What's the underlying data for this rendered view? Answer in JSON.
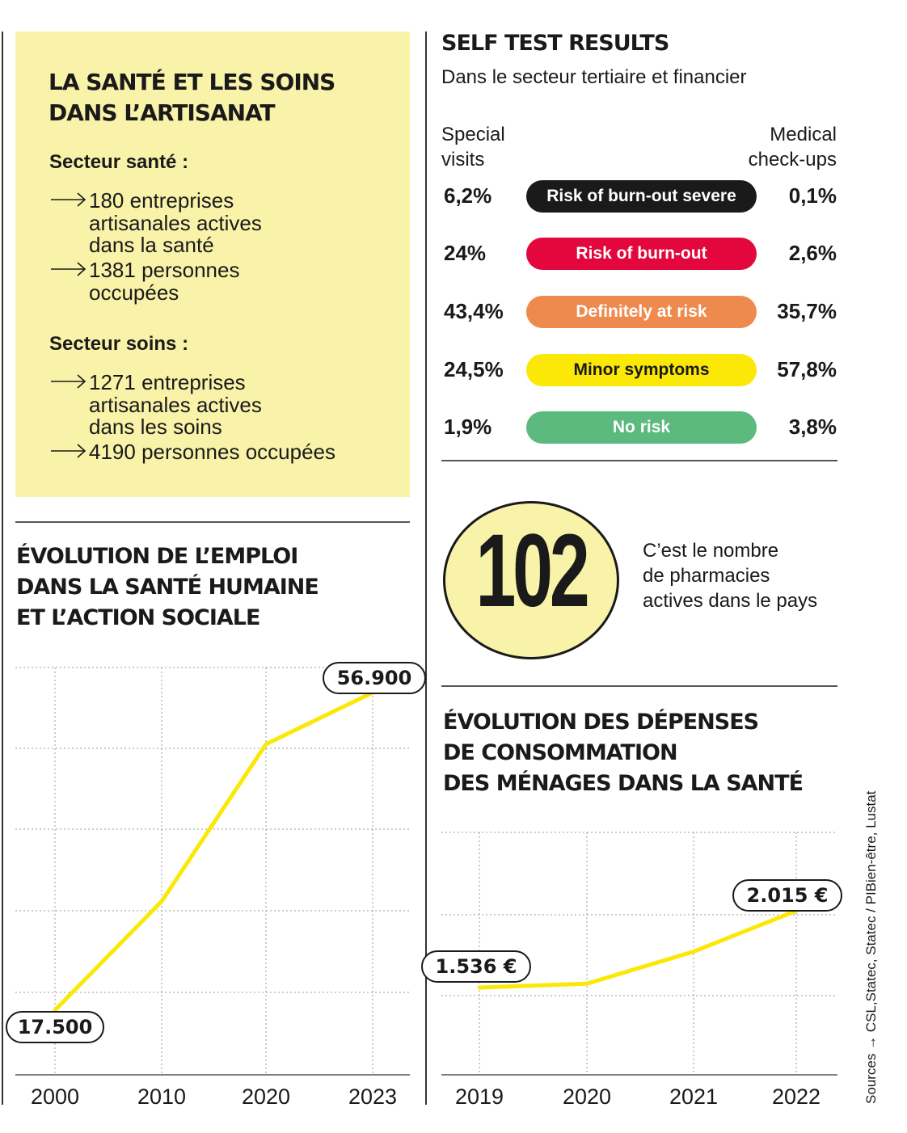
{
  "artisanat": {
    "title_line1": "LA SANTÉ ET LES SOINS",
    "title_line2": "DANS L’ARTISANAT",
    "sante": {
      "heading": "Secteur santé :",
      "items": [
        {
          "lines": [
            "180 entreprises",
            "artisanales actives",
            "dans la santé"
          ]
        },
        {
          "lines": [
            "1381 personnes",
            "occupées"
          ]
        }
      ]
    },
    "soins": {
      "heading": "Secteur soins :",
      "items": [
        {
          "lines": [
            "1271 entreprises",
            "artisanales actives",
            "dans les soins"
          ]
        },
        {
          "lines": [
            "4190 personnes occupées"
          ]
        }
      ]
    }
  },
  "self_test": {
    "title": "SELF TEST RESULTS",
    "subtitle": "Dans le secteur tertiaire et financier",
    "col_left": [
      "Special",
      "visits"
    ],
    "col_right": [
      "Medical",
      "check-ups"
    ],
    "rows": [
      {
        "label": "Risk of burn-out severe",
        "left": "6,2%",
        "right": "0,1%",
        "bg": "#1a1a1a",
        "fg": "#ffffff"
      },
      {
        "label": "Risk of burn-out",
        "left": "24%",
        "right": "2,6%",
        "bg": "#e3073d",
        "fg": "#ffffff"
      },
      {
        "label": "Definitely at risk",
        "left": "43,4%",
        "right": "35,7%",
        "bg": "#ef8a4e",
        "fg": "#ffffff"
      },
      {
        "label": "Minor symptoms",
        "left": "24,5%",
        "right": "57,8%",
        "bg": "#fbe806",
        "fg": "#1a1a1a"
      },
      {
        "label": "No risk",
        "left": "1,9%",
        "right": "3,8%",
        "bg": "#5cba7e",
        "fg": "#ffffff"
      }
    ]
  },
  "pharmacies": {
    "number": "102",
    "lines": [
      "C’est le nombre",
      "de pharmacies",
      "actives dans le pays"
    ]
  },
  "source": "Sources → CSL,Statec, Statec / PIBien-être, Lustat",
  "chart_data": [
    {
      "type": "line",
      "title": [
        "ÉVOLUTION DE L’EMPLOI",
        "DANS LA SANTÉ HUMAINE",
        "ET L’ACTION SOCIALE"
      ],
      "x": [
        2000,
        2010,
        2020,
        2023
      ],
      "x_labels": [
        "2000",
        "2010",
        "2020",
        "2023"
      ],
      "y": [
        17500,
        31000,
        50500,
        56900
      ],
      "labels": [
        "17.500",
        "",
        "",
        "56.900"
      ],
      "color": "#fbe806",
      "grid": true
    },
    {
      "type": "line",
      "title": [
        "ÉVOLUTION DES DÉPENSES",
        "DE CONSOMMATION",
        "DES MÉNAGES DANS LA SANTÉ"
      ],
      "x": [
        2019,
        2020,
        2021,
        2022
      ],
      "x_labels": [
        "2019",
        "2020",
        "2021",
        "2022"
      ],
      "y": [
        1536,
        1560,
        1760,
        2015
      ],
      "labels": [
        "1.536 €",
        "",
        "",
        "2.015 €"
      ],
      "color": "#fbe806",
      "grid": true
    }
  ]
}
